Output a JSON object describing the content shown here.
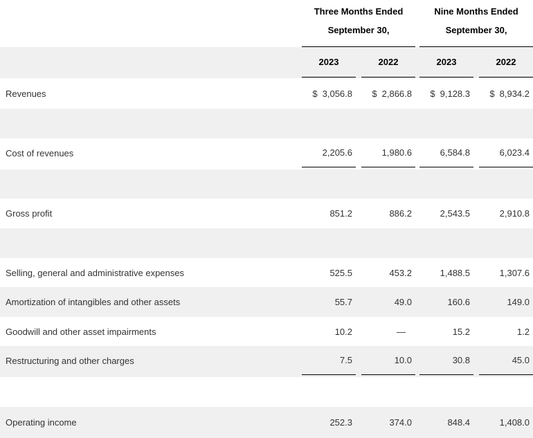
{
  "colors": {
    "row_alt_bg": "#f0f0f0",
    "body_text": "#333333",
    "header_text": "#000000",
    "rule_line": "#000000"
  },
  "table": {
    "column_groups": [
      {
        "title_line1": "Three Months Ended",
        "title_line2": "September 30,"
      },
      {
        "title_line1": "Nine Months Ended",
        "title_line2": "September 30,"
      }
    ],
    "year_headers": [
      "2023",
      "2022",
      "2023",
      "2022"
    ],
    "rows": [
      {
        "label": "Revenues",
        "cells": [
          {
            "prefix": "$",
            "value": "3,056.8"
          },
          {
            "prefix": "$",
            "value": "2,866.8"
          },
          {
            "prefix": "$",
            "value": "9,128.3"
          },
          {
            "prefix": "$",
            "value": "8,934.2"
          }
        ]
      },
      {
        "label": "Cost of revenues",
        "cells": [
          {
            "prefix": "",
            "value": "2,205.6"
          },
          {
            "prefix": "",
            "value": "1,980.6"
          },
          {
            "prefix": "",
            "value": "6,584.8"
          },
          {
            "prefix": "",
            "value": "6,023.4"
          }
        ]
      },
      {
        "label": "Gross profit",
        "cells": [
          {
            "prefix": "",
            "value": "851.2"
          },
          {
            "prefix": "",
            "value": "886.2"
          },
          {
            "prefix": "",
            "value": "2,543.5"
          },
          {
            "prefix": "",
            "value": "2,910.8"
          }
        ]
      },
      {
        "label": "Selling, general and administrative expenses",
        "cells": [
          {
            "prefix": "",
            "value": "525.5"
          },
          {
            "prefix": "",
            "value": "453.2"
          },
          {
            "prefix": "",
            "value": "1,488.5"
          },
          {
            "prefix": "",
            "value": "1,307.6"
          }
        ]
      },
      {
        "label": "Amortization of intangibles and other assets",
        "cells": [
          {
            "prefix": "",
            "value": "55.7"
          },
          {
            "prefix": "",
            "value": "49.0"
          },
          {
            "prefix": "",
            "value": "160.6"
          },
          {
            "prefix": "",
            "value": "149.0"
          }
        ]
      },
      {
        "label": "Goodwill and other asset impairments",
        "cells": [
          {
            "prefix": "",
            "value": "10.2"
          },
          {
            "prefix": "",
            "value": "—"
          },
          {
            "prefix": "",
            "value": "15.2"
          },
          {
            "prefix": "",
            "value": "1.2"
          }
        ]
      },
      {
        "label": "Restructuring and other charges",
        "cells": [
          {
            "prefix": "",
            "value": "7.5"
          },
          {
            "prefix": "",
            "value": "10.0"
          },
          {
            "prefix": "",
            "value": "30.8"
          },
          {
            "prefix": "",
            "value": "45.0"
          }
        ]
      },
      {
        "label": "Operating income",
        "cells": [
          {
            "prefix": "",
            "value": "252.3"
          },
          {
            "prefix": "",
            "value": "374.0"
          },
          {
            "prefix": "",
            "value": "848.4"
          },
          {
            "prefix": "",
            "value": "1,408.0"
          }
        ]
      }
    ]
  }
}
